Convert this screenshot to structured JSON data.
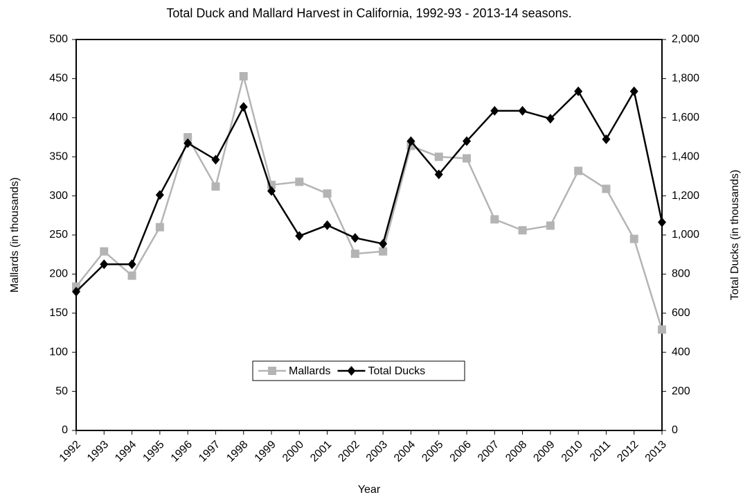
{
  "chart_data": {
    "type": "line",
    "title": "Total Duck and Mallard Harvest in California, 1992-93 - 2013-14 seasons.",
    "x_label": "Year",
    "y_label": "Mallards (in thousands)",
    "y2_label": "Total Ducks (in thousands)",
    "categories": [
      "1992",
      "1993",
      "1994",
      "1995",
      "1996",
      "1997",
      "1998",
      "1999",
      "2000",
      "2001",
      "2002",
      "2003",
      "2004",
      "2005",
      "2006",
      "2007",
      "2008",
      "2009",
      "2010",
      "2011",
      "2012",
      "2013"
    ],
    "series": [
      {
        "name": "Mallards",
        "color": "#b4b4b4",
        "marker": "square",
        "axis": "y",
        "values": [
          184,
          229,
          198,
          260,
          375,
          312,
          453,
          314,
          318,
          303,
          226,
          229,
          364,
          350,
          348,
          270,
          256,
          262,
          332,
          309,
          245,
          129
        ]
      },
      {
        "name": "Total Ducks",
        "color": "#000000",
        "marker": "diamond",
        "axis": "y2",
        "values": [
          710,
          850,
          850,
          1205,
          1470,
          1385,
          1655,
          1225,
          995,
          1050,
          985,
          955,
          1480,
          1310,
          1480,
          1635,
          1635,
          1595,
          1735,
          1490,
          1735,
          1065
        ]
      }
    ],
    "ylim": [
      0,
      500
    ],
    "yticks": [
      0,
      50,
      100,
      150,
      200,
      250,
      300,
      350,
      400,
      450,
      500
    ],
    "y2lim": [
      0,
      2000
    ],
    "y2ticks": [
      0,
      200,
      400,
      600,
      800,
      {
        "value": 1000,
        "label": "1,000"
      },
      {
        "value": 1200,
        "label": "1,200"
      },
      {
        "value": 1400,
        "label": "1,400"
      },
      {
        "value": 1600,
        "label": "1,600"
      },
      {
        "value": 1800,
        "label": "1,800"
      },
      {
        "value": 2000,
        "label": "2,000"
      }
    ],
    "legend": "center"
  }
}
